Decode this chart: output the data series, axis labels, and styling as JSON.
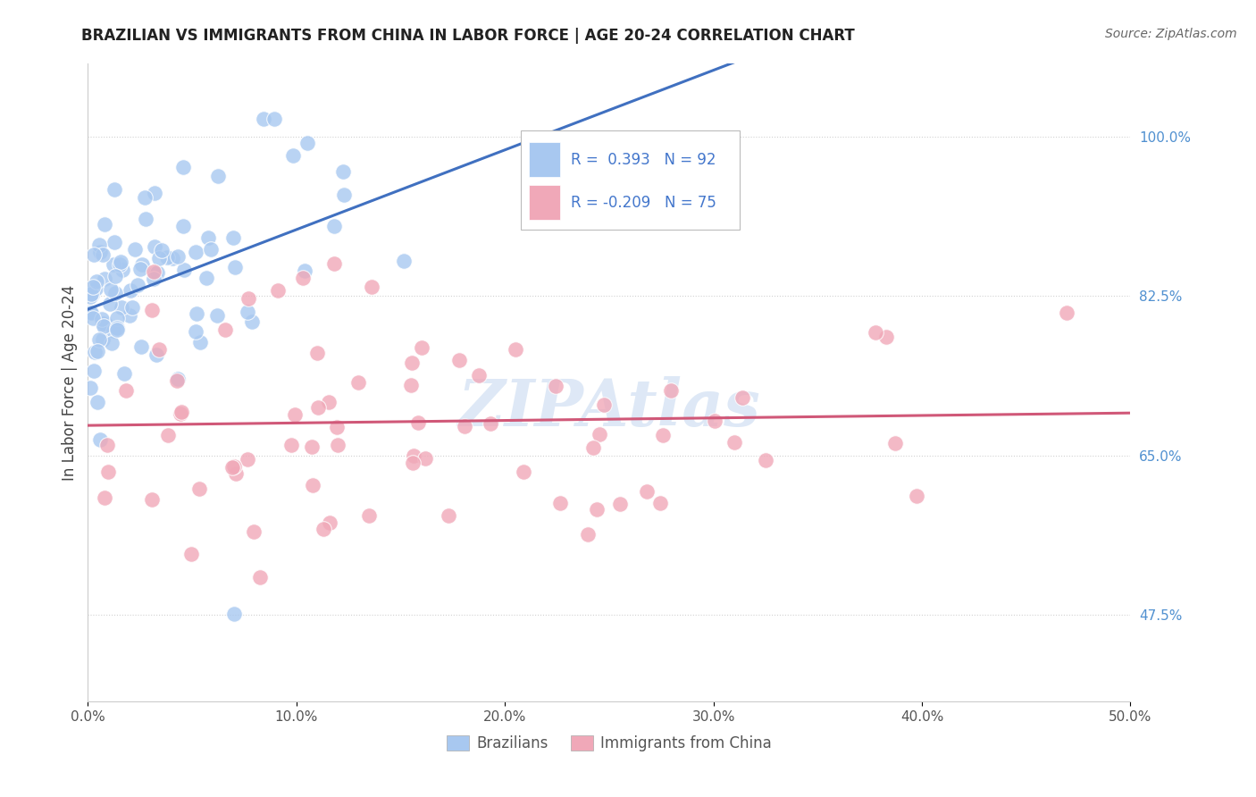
{
  "title": "BRAZILIAN VS IMMIGRANTS FROM CHINA IN LABOR FORCE | AGE 20-24 CORRELATION CHART",
  "source": "Source: ZipAtlas.com",
  "ylabel": "In Labor Force | Age 20-24",
  "xlim": [
    0.0,
    0.5
  ],
  "ylim": [
    0.38,
    1.08
  ],
  "ytick_vals": [
    0.475,
    0.65,
    0.825,
    1.0
  ],
  "ytick_labels": [
    "47.5%",
    "65.0%",
    "82.5%",
    "100.0%"
  ],
  "xtick_vals": [
    0.0,
    0.1,
    0.2,
    0.3,
    0.4,
    0.5
  ],
  "xtick_labels": [
    "0.0%",
    "10.0%",
    "20.0%",
    "30.0%",
    "40.0%",
    "50.0%"
  ],
  "r_blue": 0.393,
  "n_blue": 92,
  "r_pink": -0.209,
  "n_pink": 75,
  "blue_color": "#a8c8f0",
  "pink_color": "#f0a8b8",
  "trend_blue": "#4070c0",
  "trend_pink": "#d05878",
  "ytick_color": "#5090d0",
  "watermark_color": "#c8daf0",
  "background_color": "#ffffff",
  "grid_color": "#cccccc",
  "title_color": "#222222",
  "source_color": "#666666",
  "legend_text_color": "#4477cc"
}
